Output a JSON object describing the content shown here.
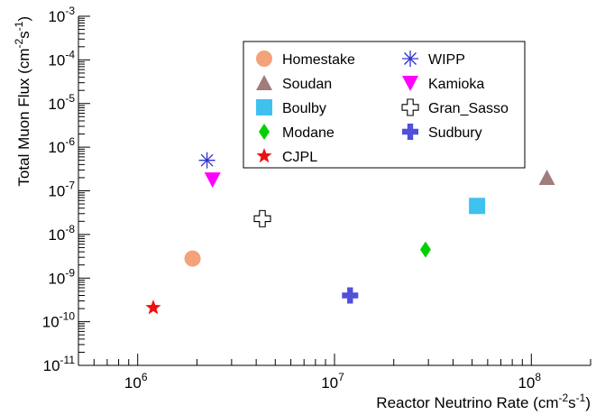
{
  "chart_data": {
    "type": "scatter",
    "xlabel": {
      "base": "Reactor Neutrino Rate (cm",
      "sup1": "-2",
      "mid": "s",
      "sup2": "-1",
      "end": ")"
    },
    "ylabel": {
      "base": "Total Muon Flux (cm",
      "sup1": "-2",
      "mid": "s",
      "sup2": "-1",
      "end": ")"
    },
    "x_scale": "log",
    "y_scale": "log",
    "xlim": [
      500000,
      200000000
    ],
    "ylim": [
      1e-11,
      0.001
    ],
    "x_ticks": [
      {
        "value": 1000000,
        "base": "10",
        "exp": "6"
      },
      {
        "value": 10000000,
        "base": "10",
        "exp": "7"
      },
      {
        "value": 100000000,
        "base": "10",
        "exp": "8"
      }
    ],
    "y_ticks": [
      {
        "value": 1e-11,
        "base": "10",
        "exp": "-11"
      },
      {
        "value": 1e-10,
        "base": "10",
        "exp": "-10"
      },
      {
        "value": 1e-09,
        "base": "10",
        "exp": "-9"
      },
      {
        "value": 1e-08,
        "base": "10",
        "exp": "-8"
      },
      {
        "value": 1e-07,
        "base": "10",
        "exp": "-7"
      },
      {
        "value": 1e-06,
        "base": "10",
        "exp": "-6"
      },
      {
        "value": 1e-05,
        "base": "10",
        "exp": "-5"
      },
      {
        "value": 0.0001,
        "base": "10",
        "exp": "-4"
      },
      {
        "value": 0.001,
        "base": "10",
        "exp": "-3"
      }
    ],
    "grid": false,
    "legend_position": "top-right",
    "series": [
      {
        "name": "Homestake",
        "marker": "circle",
        "color": "#f4a27a",
        "x": 1900000,
        "y": 2.8e-09
      },
      {
        "name": "Soudan",
        "marker": "triangle-up",
        "color": "#a07c7c",
        "x": 120000000,
        "y": 2e-07
      },
      {
        "name": "Boulby",
        "marker": "square",
        "color": "#3fc1f0",
        "x": 53000000,
        "y": 4.5e-08
      },
      {
        "name": "Modane",
        "marker": "diamond",
        "color": "#00d000",
        "x": 29000000,
        "y": 4.5e-09
      },
      {
        "name": "CJPL",
        "marker": "star",
        "color": "#ee1111",
        "x": 1200000,
        "y": 2.1e-10
      },
      {
        "name": "WIPP",
        "marker": "asterisk",
        "color": "#3030d0",
        "x": 2250000,
        "y": 5e-07
      },
      {
        "name": "Kamioka",
        "marker": "triangle-down",
        "color": "#ff00ff",
        "x": 2400000,
        "y": 1.8e-07
      },
      {
        "name": "Gran_Sasso",
        "marker": "open-cross",
        "color": "#000000",
        "x": 4300000,
        "y": 2.3e-08
      },
      {
        "name": "Sudbury",
        "marker": "cross",
        "color": "#5050d8",
        "x": 12000000,
        "y": 4e-10
      }
    ]
  }
}
